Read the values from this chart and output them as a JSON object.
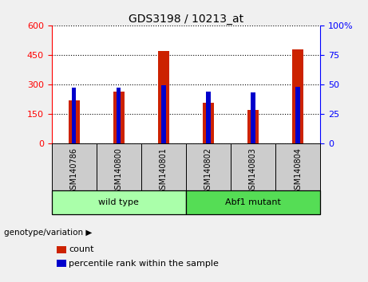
{
  "title": "GDS3198 / 10213_at",
  "samples": [
    "GSM140786",
    "GSM140800",
    "GSM140801",
    "GSM140802",
    "GSM140803",
    "GSM140804"
  ],
  "count_values": [
    220,
    265,
    470,
    205,
    170,
    480
  ],
  "percentile_values": [
    47,
    47,
    49,
    44,
    43,
    48
  ],
  "left_ylim": [
    0,
    600
  ],
  "right_ylim": [
    0,
    100
  ],
  "left_yticks": [
    0,
    150,
    300,
    450,
    600
  ],
  "right_yticks": [
    0,
    25,
    50,
    75,
    100
  ],
  "bar_color_red": "#cc2200",
  "bar_color_blue": "#0000cc",
  "groups": [
    {
      "label": "wild type",
      "indices": [
        0,
        1,
        2
      ],
      "color": "#aaffaa"
    },
    {
      "label": "Abf1 mutant",
      "indices": [
        3,
        4,
        5
      ],
      "color": "#55dd55"
    }
  ],
  "group_label_prefix": "genotype/variation",
  "legend_count": "count",
  "legend_pct": "percentile rank within the sample",
  "bar_width": 0.25,
  "blue_bar_width": 0.1,
  "fig_bg": "#f0f0f0",
  "plot_bg": "#ffffff",
  "sample_label_bg": "#cccccc"
}
